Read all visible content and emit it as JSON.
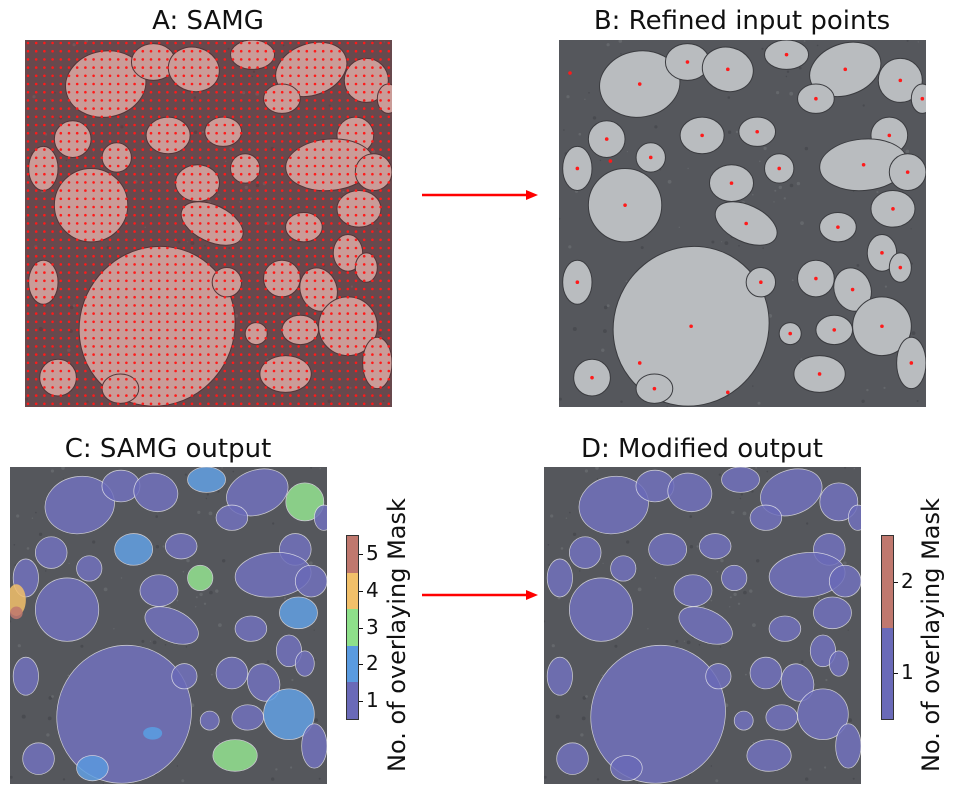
{
  "panels": {
    "a": {
      "title": "A: SAMG"
    },
    "b": {
      "title": "B: Refined input points"
    },
    "c": {
      "title": "C: SAMG output"
    },
    "d": {
      "title": "D: Modified output"
    }
  },
  "colorbar_c": {
    "label": "No. of overlaying Mask",
    "ticks": [
      "1",
      "2",
      "3",
      "4",
      "5"
    ],
    "colors": [
      "#6a6ab8",
      "#5a9be0",
      "#8ee08a",
      "#f2c06a",
      "#c0786e"
    ]
  },
  "colorbar_d": {
    "label": "No. of overlaying Mask",
    "ticks": [
      "1",
      "2"
    ],
    "colors": [
      "#6a6ab8",
      "#c0786e"
    ]
  },
  "colors": {
    "arrow": "#ff0000",
    "point": "#ff1a1a",
    "sand": "#55575c",
    "stone": "#b9bcbf",
    "mask_blue": "#4b4bb4"
  }
}
